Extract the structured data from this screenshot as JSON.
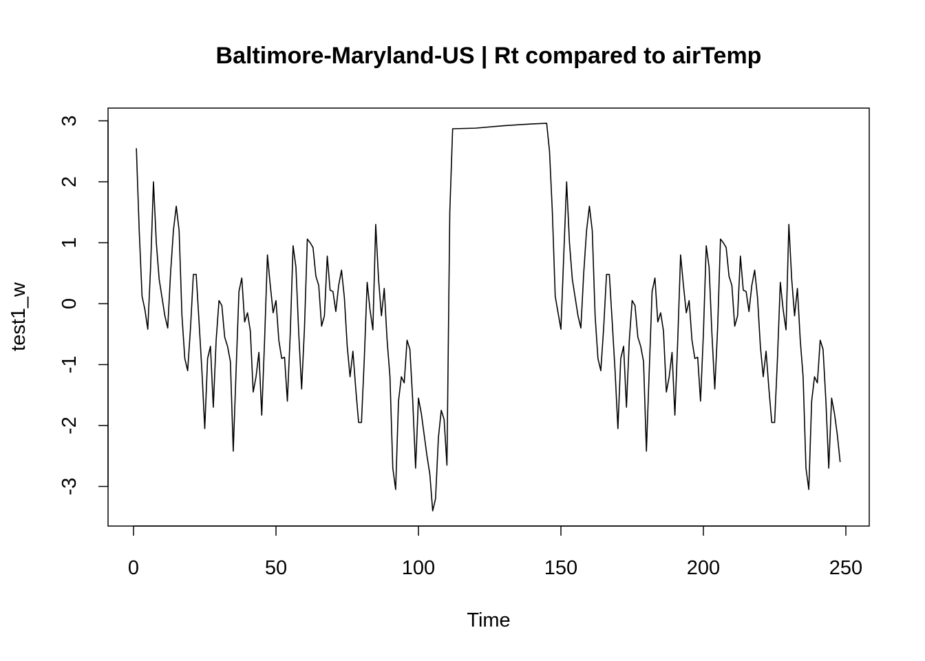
{
  "chart_data": {
    "type": "line",
    "title": "Baltimore-Maryland-US | Rt compared to airTemp",
    "xlabel": "Time",
    "ylabel": "test1_w",
    "xlim": [
      0,
      250
    ],
    "ylim": [
      -3.5,
      3.2
    ],
    "xticks": [
      0,
      50,
      100,
      150,
      200,
      250
    ],
    "yticks": [
      -3,
      -2,
      -1,
      0,
      1,
      2,
      3
    ],
    "grid": false,
    "legend": "none",
    "line_color": "#000000",
    "series": [
      {
        "x": [
          1,
          2,
          3,
          4,
          5,
          6,
          7,
          8,
          9,
          10,
          11,
          12,
          13,
          14,
          15,
          16,
          17,
          18,
          19,
          20,
          21,
          22,
          23,
          24,
          25,
          26,
          27,
          28,
          29,
          30,
          31,
          32,
          33,
          34,
          35,
          36,
          37,
          38,
          39,
          40,
          41,
          42,
          43,
          44,
          45,
          46,
          47,
          48,
          49,
          50,
          51,
          52,
          53,
          54,
          55,
          56,
          57,
          58,
          59,
          60,
          61,
          62,
          63,
          64,
          65,
          66,
          67,
          68,
          69,
          70,
          71,
          72,
          73,
          74,
          75,
          76,
          77,
          78,
          79,
          80,
          81,
          82,
          83,
          84,
          85,
          86,
          87,
          88,
          89,
          90,
          91,
          92,
          93,
          94,
          95,
          96,
          97,
          98,
          99,
          100,
          101,
          102,
          103,
          104,
          105,
          106,
          107,
          108,
          109,
          110,
          111,
          112,
          120,
          130,
          140,
          145,
          146,
          147,
          148,
          149,
          150,
          151,
          152,
          153,
          154,
          155,
          156,
          157,
          158,
          159,
          160,
          161,
          162,
          163,
          164,
          165,
          166,
          167,
          168,
          169,
          170,
          171,
          172,
          173,
          174,
          175,
          176,
          177,
          178,
          179,
          180,
          181,
          182,
          183,
          184,
          185,
          186,
          187,
          188,
          189,
          190,
          191,
          192,
          193,
          194,
          195,
          196,
          197,
          198,
          199,
          200,
          201,
          202,
          203,
          204,
          205,
          206,
          207,
          208,
          209,
          210,
          211,
          212,
          213,
          214,
          215,
          216,
          217,
          218,
          219,
          220,
          221,
          222,
          223,
          224,
          225,
          226,
          227,
          228,
          229,
          230,
          231,
          232,
          233,
          234,
          235,
          236,
          237,
          238,
          239,
          240,
          241,
          242,
          243,
          244,
          245,
          246,
          247,
          248
        ],
        "values": [
          2.55,
          1.2,
          0.12,
          -0.1,
          -0.42,
          0.6,
          2.0,
          1.0,
          0.4,
          0.1,
          -0.2,
          -0.4,
          0.5,
          1.2,
          1.6,
          1.2,
          -0.2,
          -0.9,
          -1.1,
          -0.4,
          0.48,
          0.48,
          -0.3,
          -1.1,
          -2.05,
          -0.9,
          -0.7,
          -1.7,
          -0.6,
          0.05,
          -0.03,
          -0.55,
          -0.7,
          -0.95,
          -2.42,
          -1.1,
          0.2,
          0.42,
          -0.3,
          -0.15,
          -0.45,
          -1.45,
          -1.2,
          -0.8,
          -1.83,
          -0.6,
          0.8,
          0.3,
          -0.15,
          0.05,
          -0.6,
          -0.9,
          -0.88,
          -1.6,
          -0.5,
          0.95,
          0.6,
          -0.5,
          -1.4,
          -0.4,
          1.06,
          1.0,
          0.92,
          0.45,
          0.3,
          -0.37,
          -0.2,
          0.78,
          0.22,
          0.2,
          -0.13,
          0.3,
          0.55,
          0.1,
          -0.7,
          -1.2,
          -0.78,
          -1.4,
          -1.95,
          -1.95,
          -0.9,
          0.35,
          -0.1,
          -0.43,
          1.3,
          0.4,
          -0.2,
          0.25,
          -0.6,
          -1.2,
          -2.7,
          -3.05,
          -1.6,
          -1.2,
          -1.3,
          -0.6,
          -0.75,
          -1.6,
          -2.7,
          -1.55,
          -1.8,
          -2.15,
          -2.5,
          -2.8,
          -3.4,
          -3.2,
          -2.2,
          -1.75,
          -1.9,
          -2.65,
          1.5,
          2.87,
          2.88,
          2.92,
          2.95,
          2.96,
          2.5,
          1.5,
          0.12,
          -0.15,
          -0.42,
          0.8,
          2.0,
          1.0,
          0.4,
          0.1,
          -0.2,
          -0.4,
          0.5,
          1.2,
          1.6,
          1.2,
          -0.2,
          -0.9,
          -1.1,
          -0.4,
          0.48,
          0.48,
          -0.3,
          -1.1,
          -2.05,
          -0.9,
          -0.7,
          -1.7,
          -0.6,
          0.05,
          -0.03,
          -0.55,
          -0.7,
          -0.95,
          -2.42,
          -1.1,
          0.2,
          0.42,
          -0.3,
          -0.15,
          -0.45,
          -1.45,
          -1.2,
          -0.8,
          -1.83,
          -0.6,
          0.8,
          0.3,
          -0.15,
          0.05,
          -0.6,
          -0.9,
          -0.88,
          -1.6,
          -0.5,
          0.95,
          0.6,
          -0.5,
          -1.4,
          -0.4,
          1.06,
          1.0,
          0.92,
          0.45,
          0.3,
          -0.37,
          -0.2,
          0.78,
          0.22,
          0.2,
          -0.13,
          0.3,
          0.55,
          0.1,
          -0.7,
          -1.2,
          -0.78,
          -1.4,
          -1.95,
          -1.95,
          -0.9,
          0.35,
          -0.1,
          -0.43,
          1.3,
          0.4,
          -0.2,
          0.25,
          -0.6,
          -1.2,
          -2.7,
          -3.05,
          -1.6,
          -1.2,
          -1.3,
          -0.6,
          -0.75,
          -1.6,
          -2.7,
          -1.55,
          -1.8,
          -2.15,
          -2.6
        ]
      }
    ]
  }
}
